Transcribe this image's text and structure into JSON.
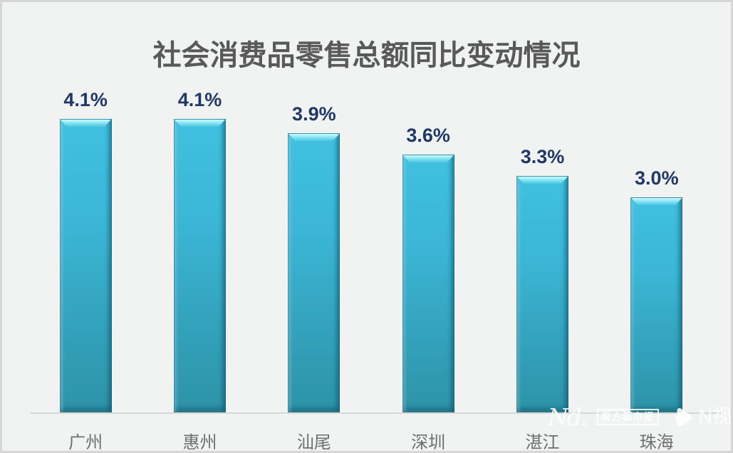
{
  "chart_data": {
    "type": "bar",
    "title": "社会消费品零售总额同比变动情况",
    "categories": [
      "广州",
      "惠州",
      "汕尾",
      "深圳",
      "湛江",
      "珠海"
    ],
    "values": [
      4.1,
      4.1,
      3.9,
      3.6,
      3.3,
      3.0
    ],
    "labels": [
      "4.1%",
      "4.1%",
      "3.9%",
      "3.6%",
      "3.3%",
      "3.0%"
    ],
    "xlabel": "",
    "ylabel": "",
    "ylim": [
      0,
      4.5
    ],
    "grid": false,
    "legend": "none",
    "value_labels_position": "above-bars",
    "colors": {
      "background": "#f1f2f2",
      "title": "#595959",
      "value_label": "#1f3864",
      "category_label": "#6f6f6f",
      "bar_top": "#40c0e0",
      "bar_bottom": "#2d93a8",
      "bar_bevel_highlight": "#cdf8fc",
      "axis_line": "#d7d7d7"
    }
  },
  "watermark": {
    "brand_script": "Nd.",
    "newspaper_name": "南方都市报",
    "video_brand": "N视频",
    "play_icon": "play-triangle",
    "color": "#ffffff"
  }
}
